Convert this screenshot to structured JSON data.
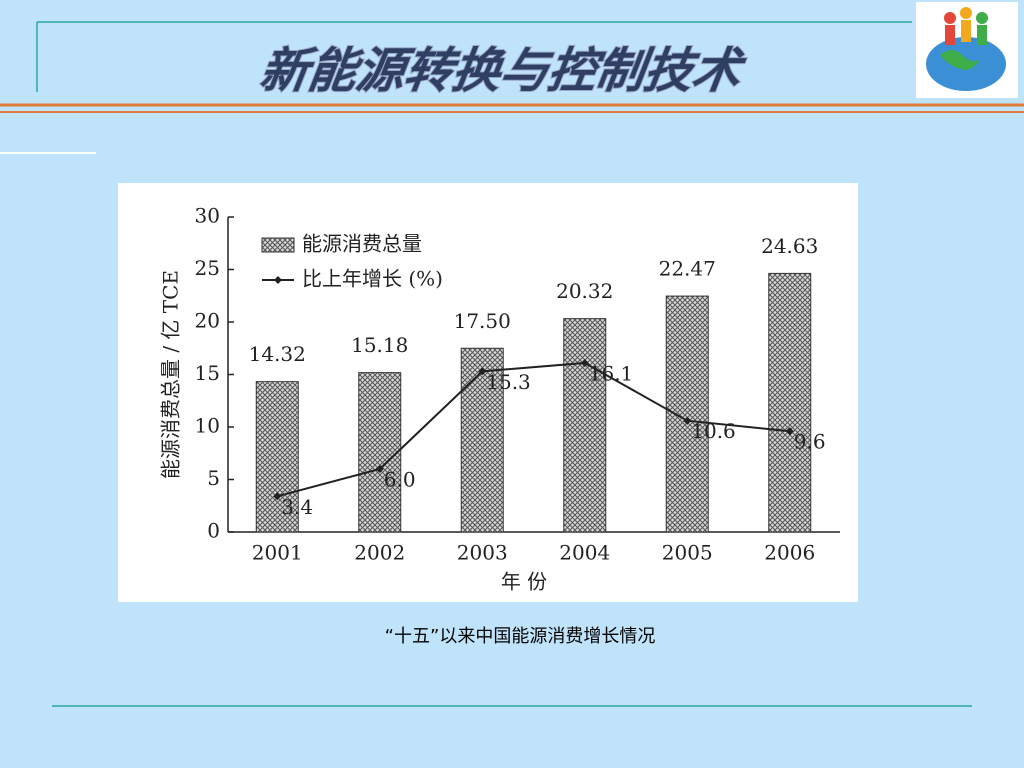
{
  "slide_title": "新能源转换与控制技术",
  "caption": "“十五”以来中国能源消费增长情况",
  "chart_data": {
    "type": "bar",
    "categories": [
      "2001",
      "2002",
      "2003",
      "2004",
      "2005",
      "2006"
    ],
    "x_label": "年 份",
    "y_label": "能源消费总量 / 亿 TCE",
    "ylim": [
      0,
      30
    ],
    "yticks": [
      0,
      5,
      10,
      15,
      20,
      25,
      30
    ],
    "series": [
      {
        "name": "能源消费总量",
        "type": "bar",
        "color": "#888888",
        "values": [
          14.32,
          15.18,
          17.5,
          20.32,
          22.47,
          24.63
        ],
        "value_labels": [
          "14.32",
          "15.18",
          "17.50",
          "20.32",
          "22.47",
          "24.63"
        ]
      },
      {
        "name": "比上年增长 (%)",
        "type": "line",
        "color": "#222222",
        "values": [
          3.4,
          6.0,
          15.3,
          16.1,
          10.6,
          9.6
        ],
        "value_labels": [
          "3.4",
          "6.0",
          "15.3",
          "16.1",
          "10.6",
          "9.6"
        ]
      }
    ]
  }
}
